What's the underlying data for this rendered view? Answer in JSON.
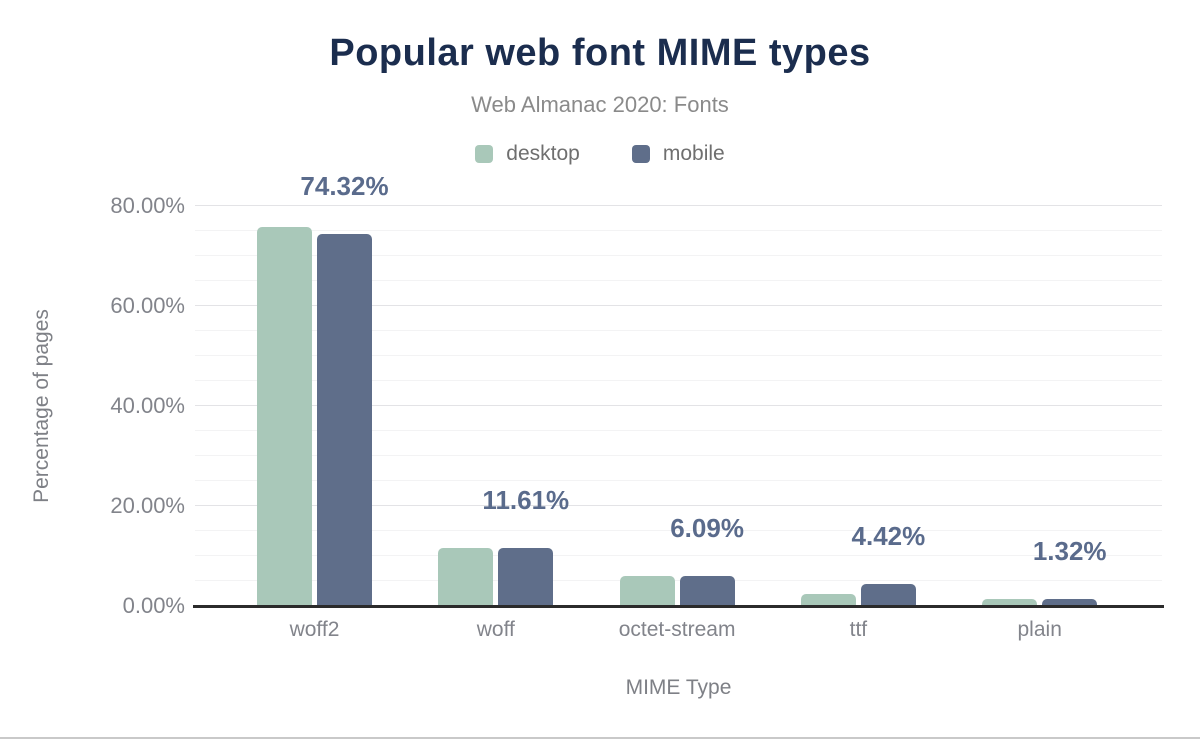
{
  "figure": {
    "title": "Popular web font MIME types",
    "subtitle": "Web Almanac 2020: Fonts"
  },
  "colors": {
    "title_text": "#1b2d4e",
    "subtitle_text": "#8a8a8a",
    "legend_text": "#6f6f6f",
    "tick_text": "#82848b",
    "axis_title_text": "#7e8086",
    "data_label_text": "#5a6b8c",
    "axis_line": "#2b2b2b",
    "grid_major": "#e3e3e6",
    "grid_minor": "#f3f3f4",
    "desktop_series": "#a9c8b9",
    "mobile_series": "#5f6e8a"
  },
  "chart_data": {
    "type": "bar",
    "title": "Popular web font MIME types",
    "subtitle": "Web Almanac 2020: Fonts",
    "categories": [
      "woff2",
      "woff",
      "octet-stream",
      "ttf",
      "plain"
    ],
    "series": [
      {
        "name": "desktop",
        "color": "#a9c8b9",
        "values": [
          75.9,
          11.6,
          6.0,
          2.4,
          1.4
        ]
      },
      {
        "name": "mobile",
        "color": "#5f6e8a",
        "values": [
          74.32,
          11.61,
          6.09,
          4.42,
          1.32
        ]
      }
    ],
    "data_labels": [
      "74.32%",
      "11.61%",
      "6.09%",
      "4.42%",
      "1.32%"
    ],
    "data_label_series": "mobile",
    "xlabel": "MIME Type",
    "ylabel": "Percentage of pages",
    "ylim": [
      0,
      80
    ],
    "yticks": [
      "0.00%",
      "20.00%",
      "40.00%",
      "60.00%",
      "80.00%"
    ],
    "ytick_values": [
      0,
      20,
      40,
      60,
      80
    ],
    "grid": "horizontal, minor lines every 5%, major lines every 20%",
    "legend_position": "top-center"
  }
}
